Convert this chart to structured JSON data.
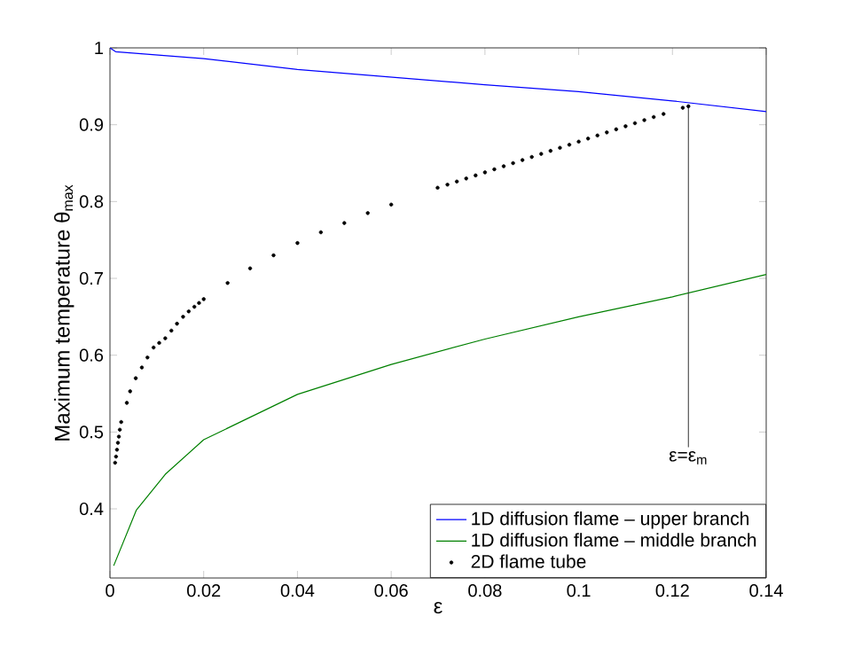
{
  "chart_data": {
    "type": "line",
    "xlabel": "ε",
    "ylabel": "Maximum temperature θ$_{max}$",
    "xlim": [
      0,
      0.14
    ],
    "ylim": [
      0.31,
      1
    ],
    "xticks": [
      0,
      0.02,
      0.04,
      0.06,
      0.08,
      0.1,
      0.12,
      0.14
    ],
    "yticks": [
      0.4,
      0.5,
      0.6,
      0.7,
      0.8,
      0.9,
      1
    ],
    "grid": false,
    "legend": "bottom right",
    "annotations": [
      {
        "text": "ε=ε$_{m}$",
        "x": 0.1234,
        "y": 0.924
      }
    ],
    "series": [
      {
        "name": "1D diffusion flame – upper branch",
        "color": "#0000ff",
        "x": [
          0,
          0.0012,
          0.02,
          0.04,
          0.06,
          0.08,
          0.1,
          0.12,
          0.14
        ],
        "values": [
          1,
          0.995,
          0.986,
          0.972,
          0.962,
          0.952,
          0.943,
          0.931,
          0.917
        ]
      },
      {
        "name": "1D diffusion flame – middle branch",
        "color": "#008000",
        "x": [
          0.0008,
          0.0056,
          0.0118,
          0.02,
          0.04,
          0.06,
          0.08,
          0.1,
          0.12,
          0.14
        ],
        "values": [
          0.326,
          0.398,
          0.445,
          0.49,
          0.549,
          0.588,
          0.621,
          0.65,
          0.676,
          0.705
        ]
      },
      {
        "name": "2D flame tube",
        "color": "#000000",
        "type": "scatter",
        "x": [
          0.0011,
          0.0013,
          0.0015,
          0.0017,
          0.0019,
          0.0021,
          0.0024,
          0.0036,
          0.0043,
          0.0055,
          0.0068,
          0.008,
          0.0093,
          0.0105,
          0.0118,
          0.0131,
          0.0143,
          0.0156,
          0.0168,
          0.018,
          0.019,
          0.02,
          0.0251,
          0.0299,
          0.0349,
          0.04,
          0.045,
          0.05,
          0.055,
          0.06,
          0.0699,
          0.072,
          0.074,
          0.076,
          0.078,
          0.08,
          0.082,
          0.084,
          0.086,
          0.088,
          0.09,
          0.092,
          0.094,
          0.096,
          0.098,
          0.1,
          0.102,
          0.104,
          0.106,
          0.108,
          0.11,
          0.112,
          0.114,
          0.116,
          0.1181,
          0.1222,
          0.1234
        ],
        "values": [
          0.46,
          0.468,
          0.477,
          0.486,
          0.494,
          0.503,
          0.513,
          0.538,
          0.553,
          0.57,
          0.584,
          0.597,
          0.61,
          0.616,
          0.622,
          0.632,
          0.641,
          0.65,
          0.657,
          0.663,
          0.668,
          0.673,
          0.694,
          0.713,
          0.73,
          0.746,
          0.76,
          0.772,
          0.785,
          0.796,
          0.818,
          0.822,
          0.826,
          0.83,
          0.834,
          0.838,
          0.842,
          0.846,
          0.85,
          0.854,
          0.858,
          0.862,
          0.866,
          0.87,
          0.874,
          0.878,
          0.882,
          0.886,
          0.89,
          0.894,
          0.898,
          0.902,
          0.906,
          0.91,
          0.914,
          0.922,
          0.924
        ]
      }
    ]
  }
}
